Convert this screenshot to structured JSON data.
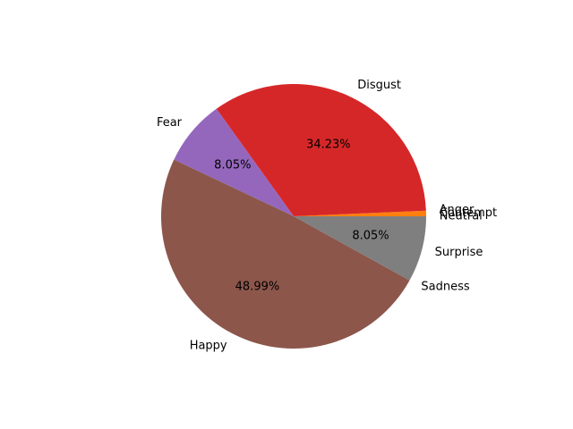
{
  "chart_data": {
    "type": "pie",
    "slices": [
      {
        "label": "Neutral",
        "value": 0,
        "pct_label": "",
        "color": "#1f77b4"
      },
      {
        "label": "Contempt",
        "value": 0.67,
        "pct_label": "",
        "color": "#ff7f0e"
      },
      {
        "label": "Anger",
        "value": 0,
        "pct_label": "",
        "color": "#2ca02c"
      },
      {
        "label": "Disgust",
        "value": 34.23,
        "pct_label": "34.23%",
        "color": "#d62728"
      },
      {
        "label": "Fear",
        "value": 8.05,
        "pct_label": "8.05%",
        "color": "#9467bd"
      },
      {
        "label": "Happy",
        "value": 48.99,
        "pct_label": "48.99%",
        "color": "#8c564b"
      },
      {
        "label": "Sadness",
        "value": 0,
        "pct_label": "",
        "color": "#e377c2"
      },
      {
        "label": "Surprise",
        "value": 8.05,
        "pct_label": "8.05%",
        "color": "#7f7f7f"
      }
    ],
    "start_angle_deg": 0,
    "direction": "counterclockwise"
  }
}
